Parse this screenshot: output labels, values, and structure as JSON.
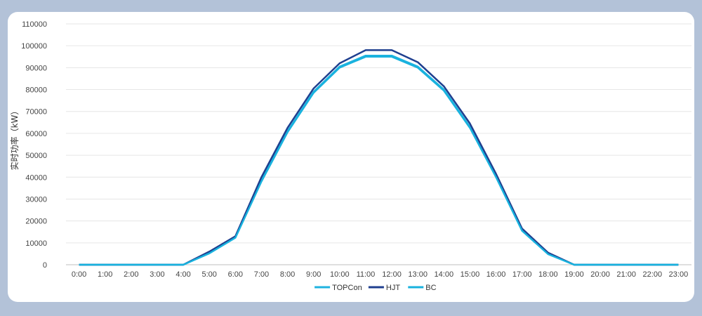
{
  "chart_data": {
    "type": "line",
    "ylabel": "实时功率（kW）",
    "xlabel": "",
    "ylim": [
      0,
      110000
    ],
    "yticks": [
      0,
      10000,
      20000,
      30000,
      40000,
      50000,
      60000,
      70000,
      80000,
      90000,
      100000,
      110000
    ],
    "grid": true,
    "legend_position": "bottom",
    "categories": [
      "0:00",
      "1:00",
      "2:00",
      "3:00",
      "4:00",
      "5:00",
      "6:00",
      "7:00",
      "8:00",
      "9:00",
      "10:00",
      "11:00",
      "12:00",
      "13:00",
      "14:00",
      "15:00",
      "16:00",
      "17:00",
      "18:00",
      "19:00",
      "20:00",
      "21:00",
      "22:00",
      "23:00"
    ],
    "series": [
      {
        "name": "TOPCon",
        "color": "#1fb3e0",
        "values": [
          0,
          0,
          0,
          0,
          0,
          5500,
          12500,
          38500,
          61000,
          79000,
          90500,
          95500,
          95500,
          90500,
          80000,
          63000,
          40500,
          16000,
          5000,
          0,
          0,
          0,
          0,
          0
        ]
      },
      {
        "name": "HJT",
        "color": "#1f3f8f",
        "values": [
          0,
          0,
          0,
          0,
          0,
          6000,
          13000,
          40000,
          62500,
          80500,
          92000,
          98000,
          98000,
          92500,
          81500,
          64500,
          41500,
          16500,
          5500,
          0,
          0,
          0,
          0,
          0
        ]
      },
      {
        "name": "BC",
        "color": "#18b2de",
        "values": [
          0,
          0,
          0,
          0,
          0,
          5200,
          12300,
          38000,
          60500,
          78500,
          90000,
          95000,
          95000,
          90000,
          79500,
          62500,
          40000,
          15500,
          4800,
          0,
          0,
          0,
          0,
          0
        ]
      }
    ]
  }
}
